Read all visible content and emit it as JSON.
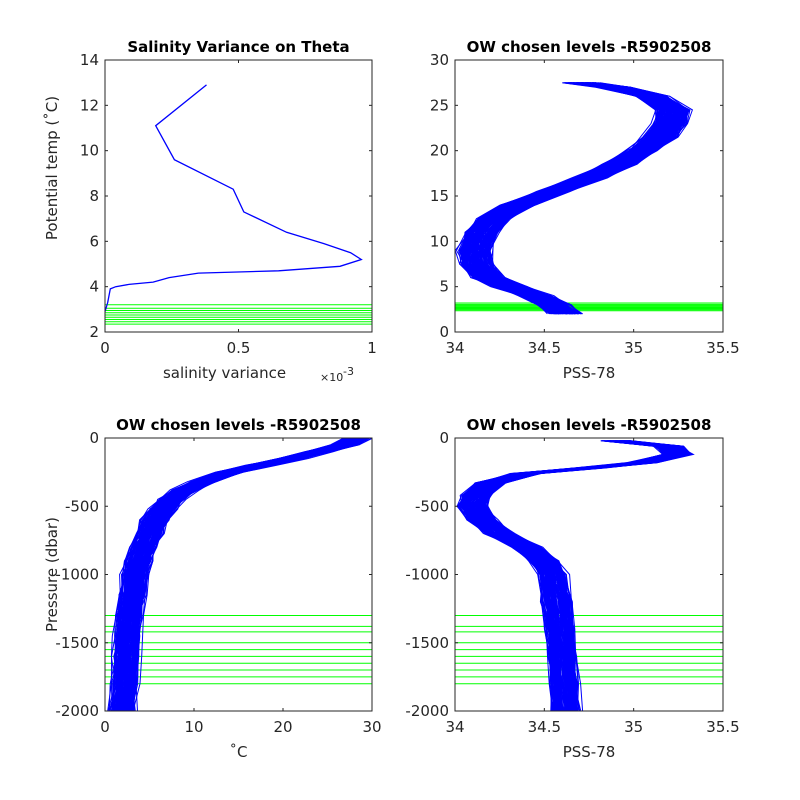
{
  "chart_data": [
    {
      "type": "line",
      "title": "Salinity Variance on Theta",
      "xlabel": "salinity variance",
      "ylabel": "Potential temp (^\\circC)",
      "xlim": [
        0,
        1
      ],
      "ylim": [
        2,
        14
      ],
      "x_multiplier": "×10",
      "x_multiplier_exp": "-3",
      "xticks": [
        "0",
        "0.5",
        "1"
      ],
      "yticks": [
        "2",
        "4",
        "6",
        "8",
        "10",
        "12",
        "14"
      ],
      "series": [
        {
          "color": "#0000ff",
          "x": [
            0.0,
            0.01,
            0.02,
            0.04,
            0.09,
            0.18,
            0.24,
            0.35,
            0.65,
            0.88,
            0.96,
            0.92,
            0.82,
            0.68,
            0.52,
            0.48,
            0.26,
            0.19,
            0.38
          ],
          "y": [
            2.9,
            3.3,
            3.9,
            4.0,
            4.1,
            4.2,
            4.4,
            4.6,
            4.7,
            4.9,
            5.2,
            5.5,
            5.9,
            6.4,
            7.3,
            8.3,
            9.6,
            11.1,
            12.9
          ]
        }
      ],
      "reference_lines": {
        "axis": "y",
        "color": "#00ff00",
        "values": [
          2.35,
          2.45,
          2.55,
          2.65,
          2.75,
          2.85,
          2.95,
          3.05,
          3.2
        ]
      }
    },
    {
      "type": "line",
      "title": "OW chosen levels -R5902508",
      "xlabel": "PSS-78",
      "ylabel": "",
      "xlim": [
        34,
        35.5
      ],
      "ylim": [
        0,
        30
      ],
      "xticks": [
        "34",
        "34.5",
        "35",
        "35.5"
      ],
      "yticks": [
        "0",
        "5",
        "10",
        "15",
        "20",
        "25",
        "30"
      ],
      "profile_band": {
        "color": "#0000ff",
        "count": 160,
        "x": [
          34.62,
          34.55,
          34.45,
          34.3,
          34.18,
          34.12,
          34.11,
          34.15,
          34.22,
          34.35,
          34.55,
          34.75,
          34.92,
          35.05,
          35.15,
          35.2,
          35.22,
          35.1,
          34.9,
          34.7
        ],
        "y": [
          2.0,
          3.0,
          4.0,
          5.0,
          6.0,
          7.5,
          9.0,
          11.0,
          12.5,
          14.0,
          15.5,
          17.0,
          18.5,
          20.0,
          21.5,
          23.0,
          24.5,
          26.0,
          27.0,
          27.5
        ],
        "x_spread": 0.08
      },
      "reference_lines": {
        "axis": "y",
        "color": "#00ff00",
        "values": [
          2.35,
          2.45,
          2.55,
          2.65,
          2.75,
          2.85,
          2.95,
          3.05,
          3.2
        ]
      }
    },
    {
      "type": "line",
      "title": "OW chosen levels -R5902508",
      "xlabel": "^\\circC",
      "ylabel": "Pressure (dbar)",
      "xlim": [
        0,
        30
      ],
      "ylim": [
        -2000,
        0
      ],
      "xticks": [
        "0",
        "10",
        "20",
        "30"
      ],
      "yticks": [
        "-2000",
        "-1500",
        "-1000",
        "-500",
        "0"
      ],
      "profile_band": {
        "color": "#0000ff",
        "count": 160,
        "x": [
          28.5,
          27.0,
          24.0,
          21.0,
          17.5,
          14.0,
          11.0,
          9.0,
          7.5,
          6.5,
          5.7,
          5.0,
          4.3,
          3.8,
          3.4,
          3.1,
          2.8,
          2.6,
          2.4,
          2.2,
          2.0
        ],
        "y": [
          0,
          -50,
          -100,
          -150,
          -200,
          -250,
          -320,
          -380,
          -450,
          -520,
          -600,
          -700,
          -800,
          -900,
          -1000,
          -1150,
          -1300,
          -1450,
          -1600,
          -1800,
          -2000
        ],
        "x_spread": 1.3
      },
      "reference_lines": {
        "axis": "y",
        "color": "#00ff00",
        "values": [
          -1300,
          -1380,
          -1420,
          -1500,
          -1550,
          -1600,
          -1650,
          -1700,
          -1750,
          -1800
        ]
      }
    },
    {
      "type": "line",
      "title": "OW chosen levels -R5902508",
      "xlabel": "PSS-78",
      "ylabel": "",
      "xlim": [
        34,
        35.5
      ],
      "ylim": [
        -2000,
        0
      ],
      "xticks": [
        "34",
        "34.5",
        "35",
        "35.5"
      ],
      "yticks": [
        "-2000",
        "-1500",
        "-1000",
        "-500",
        "0"
      ],
      "profile_band": {
        "color": "#0000ff",
        "count": 160,
        "x": [
          34.9,
          35.2,
          35.25,
          35.05,
          34.75,
          34.4,
          34.2,
          34.12,
          34.1,
          34.15,
          34.25,
          34.4,
          34.5,
          34.55,
          34.57,
          34.59,
          34.6,
          34.61,
          34.62
        ],
        "y": [
          -20,
          -60,
          -120,
          -180,
          -220,
          -260,
          -330,
          -420,
          -500,
          -600,
          -700,
          -800,
          -900,
          -1000,
          -1200,
          -1400,
          -1600,
          -1800,
          -2000
        ],
        "x_spread": 0.07
      },
      "reference_lines": {
        "axis": "y",
        "color": "#00ff00",
        "values": [
          -1300,
          -1380,
          -1420,
          -1500,
          -1550,
          -1600,
          -1650,
          -1700,
          -1750,
          -1800
        ]
      }
    }
  ]
}
